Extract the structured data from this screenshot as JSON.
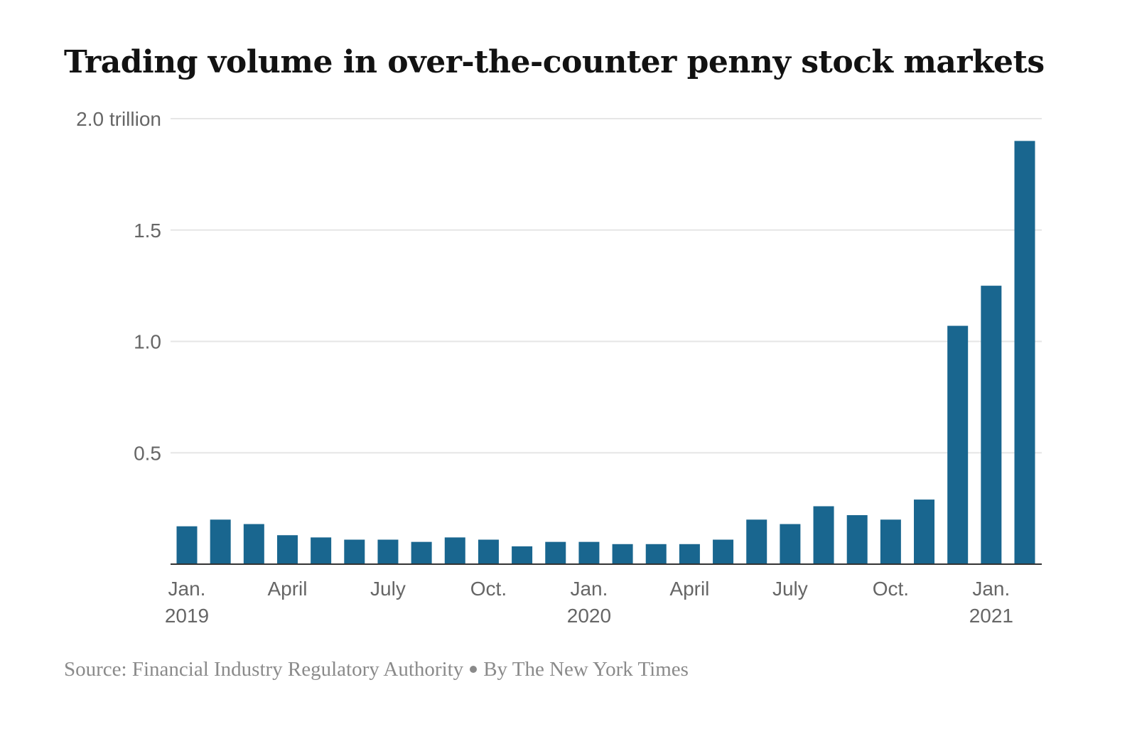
{
  "chart_data": {
    "type": "bar",
    "title": "Trading volume in over-the-counter penny stock markets",
    "xlabel": "",
    "ylabel": "",
    "ylim": [
      0,
      2.0
    ],
    "y_ticks": [
      {
        "value": 2.0,
        "label": "2.0 trillion"
      },
      {
        "value": 1.5,
        "label": "1.5"
      },
      {
        "value": 1.0,
        "label": "1.0"
      },
      {
        "value": 0.5,
        "label": "0.5"
      }
    ],
    "categories": [
      "2019-01",
      "2019-02",
      "2019-03",
      "2019-04",
      "2019-05",
      "2019-06",
      "2019-07",
      "2019-08",
      "2019-09",
      "2019-10",
      "2019-11",
      "2019-12",
      "2020-01",
      "2020-02",
      "2020-03",
      "2020-04",
      "2020-05",
      "2020-06",
      "2020-07",
      "2020-08",
      "2020-09",
      "2020-10",
      "2020-11",
      "2020-12",
      "2021-01",
      "2021-02"
    ],
    "values": [
      0.17,
      0.2,
      0.18,
      0.13,
      0.12,
      0.11,
      0.11,
      0.1,
      0.12,
      0.11,
      0.08,
      0.1,
      0.1,
      0.09,
      0.09,
      0.09,
      0.11,
      0.2,
      0.18,
      0.26,
      0.22,
      0.2,
      0.29,
      1.07,
      1.25,
      1.9
    ],
    "x_ticks": [
      {
        "category": "2019-01",
        "label": "Jan.",
        "sublabel": "2019"
      },
      {
        "category": "2019-04",
        "label": "April",
        "sublabel": ""
      },
      {
        "category": "2019-07",
        "label": "July",
        "sublabel": ""
      },
      {
        "category": "2019-10",
        "label": "Oct.",
        "sublabel": ""
      },
      {
        "category": "2020-01",
        "label": "Jan.",
        "sublabel": "2020"
      },
      {
        "category": "2020-04",
        "label": "April",
        "sublabel": ""
      },
      {
        "category": "2020-07",
        "label": "July",
        "sublabel": ""
      },
      {
        "category": "2020-10",
        "label": "Oct.",
        "sublabel": ""
      },
      {
        "category": "2021-01",
        "label": "Jan.",
        "sublabel": "2021"
      }
    ],
    "grid": true,
    "legend": "none",
    "bar_color": "#19668f",
    "grid_color": "#e6e6e6",
    "axis_color": "#333333",
    "tick_label_color": "#666666"
  },
  "source": {
    "prefix": "Source: Financial Industry Regulatory Authority",
    "suffix": "By The New York Times"
  }
}
